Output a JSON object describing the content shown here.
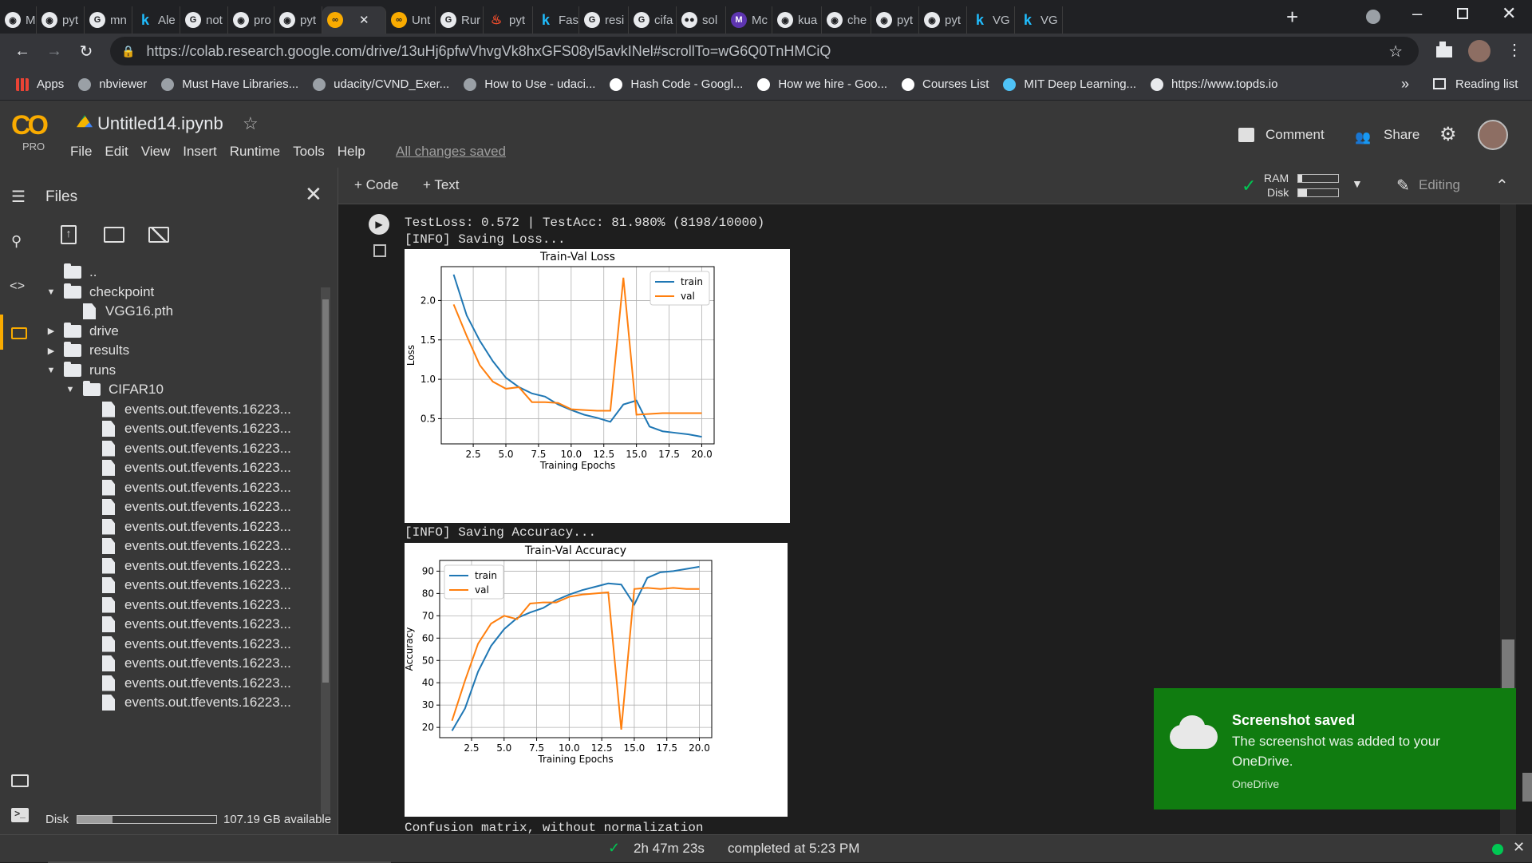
{
  "tabs": [
    {
      "label": "Ma",
      "icon": "github-icon"
    },
    {
      "label": "pyt",
      "icon": "github-icon"
    },
    {
      "label": "mn",
      "icon": "google-icon"
    },
    {
      "label": "Ale",
      "icon": "kaggle-icon"
    },
    {
      "label": "not",
      "icon": "google-icon"
    },
    {
      "label": "pro",
      "icon": "github-icon"
    },
    {
      "label": "pyt",
      "icon": "github-icon"
    },
    {
      "label": "",
      "icon": "colab-icon",
      "active": true
    },
    {
      "label": "Unt",
      "icon": "colab-icon"
    },
    {
      "label": "Rur",
      "icon": "google-icon"
    },
    {
      "label": "pyt",
      "icon": "pytorch-icon"
    },
    {
      "label": "Fas",
      "icon": "kaggle-icon"
    },
    {
      "label": "resi",
      "icon": "google-icon"
    },
    {
      "label": "cifa",
      "icon": "google-icon"
    },
    {
      "label": "sol",
      "icon": "medium-icon"
    },
    {
      "label": "Mc",
      "icon": "m-icon"
    },
    {
      "label": "kua",
      "icon": "github-icon"
    },
    {
      "label": "che",
      "icon": "github-icon"
    },
    {
      "label": "pyt",
      "icon": "github-icon"
    },
    {
      "label": "pyt",
      "icon": "github-icon"
    },
    {
      "label": "VG",
      "icon": "kaggle-icon"
    },
    {
      "label": "VG",
      "icon": "kaggle-icon"
    }
  ],
  "browser": {
    "url": "https://colab.research.google.com/drive/13uHj6pfwVhvgVk8hxGFS08yl5avkINel#scrollTo=wG6Q0TnHMCiQ",
    "reading_list": "Reading list",
    "more_bookmarks": "»"
  },
  "bookmarks": [
    "Apps",
    "nbviewer",
    "Must Have Libraries...",
    "udacity/CVND_Exer...",
    "How to Use - udaci...",
    "Hash Code - Googl...",
    "How we hire - Goo...",
    "Courses List",
    "MIT Deep Learning...",
    "https://www.topds.io"
  ],
  "colab": {
    "logo": "CO",
    "pro": "PRO",
    "notebook_title": "Untitled14.ipynb",
    "menu": [
      "File",
      "Edit",
      "View",
      "Insert",
      "Runtime",
      "Tools",
      "Help"
    ],
    "saved_status": "All changes saved",
    "comment": "Comment",
    "share": "Share",
    "add_code": "+ Code",
    "add_text": "+ Text",
    "ram": "RAM",
    "disk": "Disk",
    "editing": "Editing"
  },
  "files": {
    "title": "Files",
    "parent": "..",
    "tree": [
      {
        "name": "checkpoint",
        "type": "folder",
        "open": true,
        "level": 0
      },
      {
        "name": "VGG16.pth",
        "type": "file",
        "level": 1
      },
      {
        "name": "drive",
        "type": "folder",
        "open": false,
        "level": 0
      },
      {
        "name": "results",
        "type": "folder",
        "open": false,
        "level": 0
      },
      {
        "name": "runs",
        "type": "folder",
        "open": true,
        "level": 0
      },
      {
        "name": "CIFAR10",
        "type": "folder",
        "open": true,
        "level": 1
      }
    ],
    "event_file": "events.out.tfevents.16223...",
    "event_count": 16,
    "disk_label": "Disk",
    "disk_available": "107.19 GB available",
    "disk_used_fraction": 0.25
  },
  "output": {
    "line1": "TestLoss: 0.572 | TestAcc: 81.980% (8198/10000)",
    "line2": "[INFO] Saving Loss...",
    "line3": "[INFO] Saving Accuracy...",
    "line4": "Confusion matrix, without normalization"
  },
  "chart_data": [
    {
      "type": "line",
      "title": "Train-Val Loss",
      "xlabel": "Training Epochs",
      "ylabel": "Loss",
      "xlim": [
        0.05,
        20.95
      ],
      "ylim": [
        0.18,
        2.43
      ],
      "xticks": [
        "2.5",
        "5.0",
        "7.5",
        "10.0",
        "12.5",
        "15.0",
        "17.5",
        "20.0"
      ],
      "yticks": [
        "0.5",
        "1.0",
        "1.5",
        "2.0"
      ],
      "legend": "top-right",
      "grid": true,
      "x": [
        1,
        2,
        3,
        4,
        5,
        6,
        7,
        8,
        9,
        10,
        11,
        12,
        13,
        14,
        15,
        16,
        17,
        18,
        19,
        20
      ],
      "series": [
        {
          "name": "train",
          "color": "#1f77b4",
          "values": [
            2.33,
            1.81,
            1.49,
            1.23,
            1.02,
            0.9,
            0.82,
            0.78,
            0.68,
            0.61,
            0.55,
            0.51,
            0.46,
            0.68,
            0.73,
            0.4,
            0.34,
            0.32,
            0.3,
            0.27
          ]
        },
        {
          "name": "val",
          "color": "#ff7f0e",
          "values": [
            1.95,
            1.55,
            1.18,
            0.97,
            0.88,
            0.9,
            0.71,
            0.71,
            0.7,
            0.62,
            0.61,
            0.6,
            0.6,
            2.29,
            0.55,
            0.56,
            0.57,
            0.57,
            0.57,
            0.57
          ]
        }
      ]
    },
    {
      "type": "line",
      "title": "Train-Val Accuracy",
      "xlabel": "Training Epochs",
      "ylabel": "Accuracy",
      "xlim": [
        0.05,
        20.95
      ],
      "ylim": [
        15.4,
        94.8
      ],
      "xticks": [
        "2.5",
        "5.0",
        "7.5",
        "10.0",
        "12.5",
        "15.0",
        "17.5",
        "20.0"
      ],
      "yticks": [
        "20",
        "30",
        "40",
        "50",
        "60",
        "70",
        "80",
        "90"
      ],
      "legend": "top-left",
      "grid": true,
      "x": [
        1,
        2,
        3,
        4,
        5,
        6,
        7,
        8,
        9,
        10,
        11,
        12,
        13,
        14,
        15,
        16,
        17,
        18,
        19,
        20
      ],
      "series": [
        {
          "name": "train",
          "color": "#1f77b4",
          "values": [
            18.5,
            28.5,
            45,
            56.5,
            64,
            69,
            71.5,
            73.5,
            77,
            79.5,
            81.5,
            83,
            84.5,
            84,
            75,
            87,
            89.5,
            90,
            91,
            92
          ]
        },
        {
          "name": "val",
          "color": "#ff7f0e",
          "values": [
            23,
            41,
            57.5,
            66.5,
            70,
            68.5,
            75.5,
            76,
            76,
            78.5,
            79.5,
            80,
            80.5,
            19,
            82,
            82.5,
            82,
            82.5,
            82,
            82
          ]
        }
      ]
    }
  ],
  "status": {
    "elapsed": "2h 47m 23s",
    "completed": "completed at 5:23 PM"
  },
  "toast": {
    "title": "Screenshot saved",
    "body": "The screenshot was added to your OneDrive.",
    "source": "OneDrive"
  },
  "colors": {
    "colab_orange": "#f9ab00",
    "toast_green": "#107c10",
    "status_ok": "#00c853"
  }
}
